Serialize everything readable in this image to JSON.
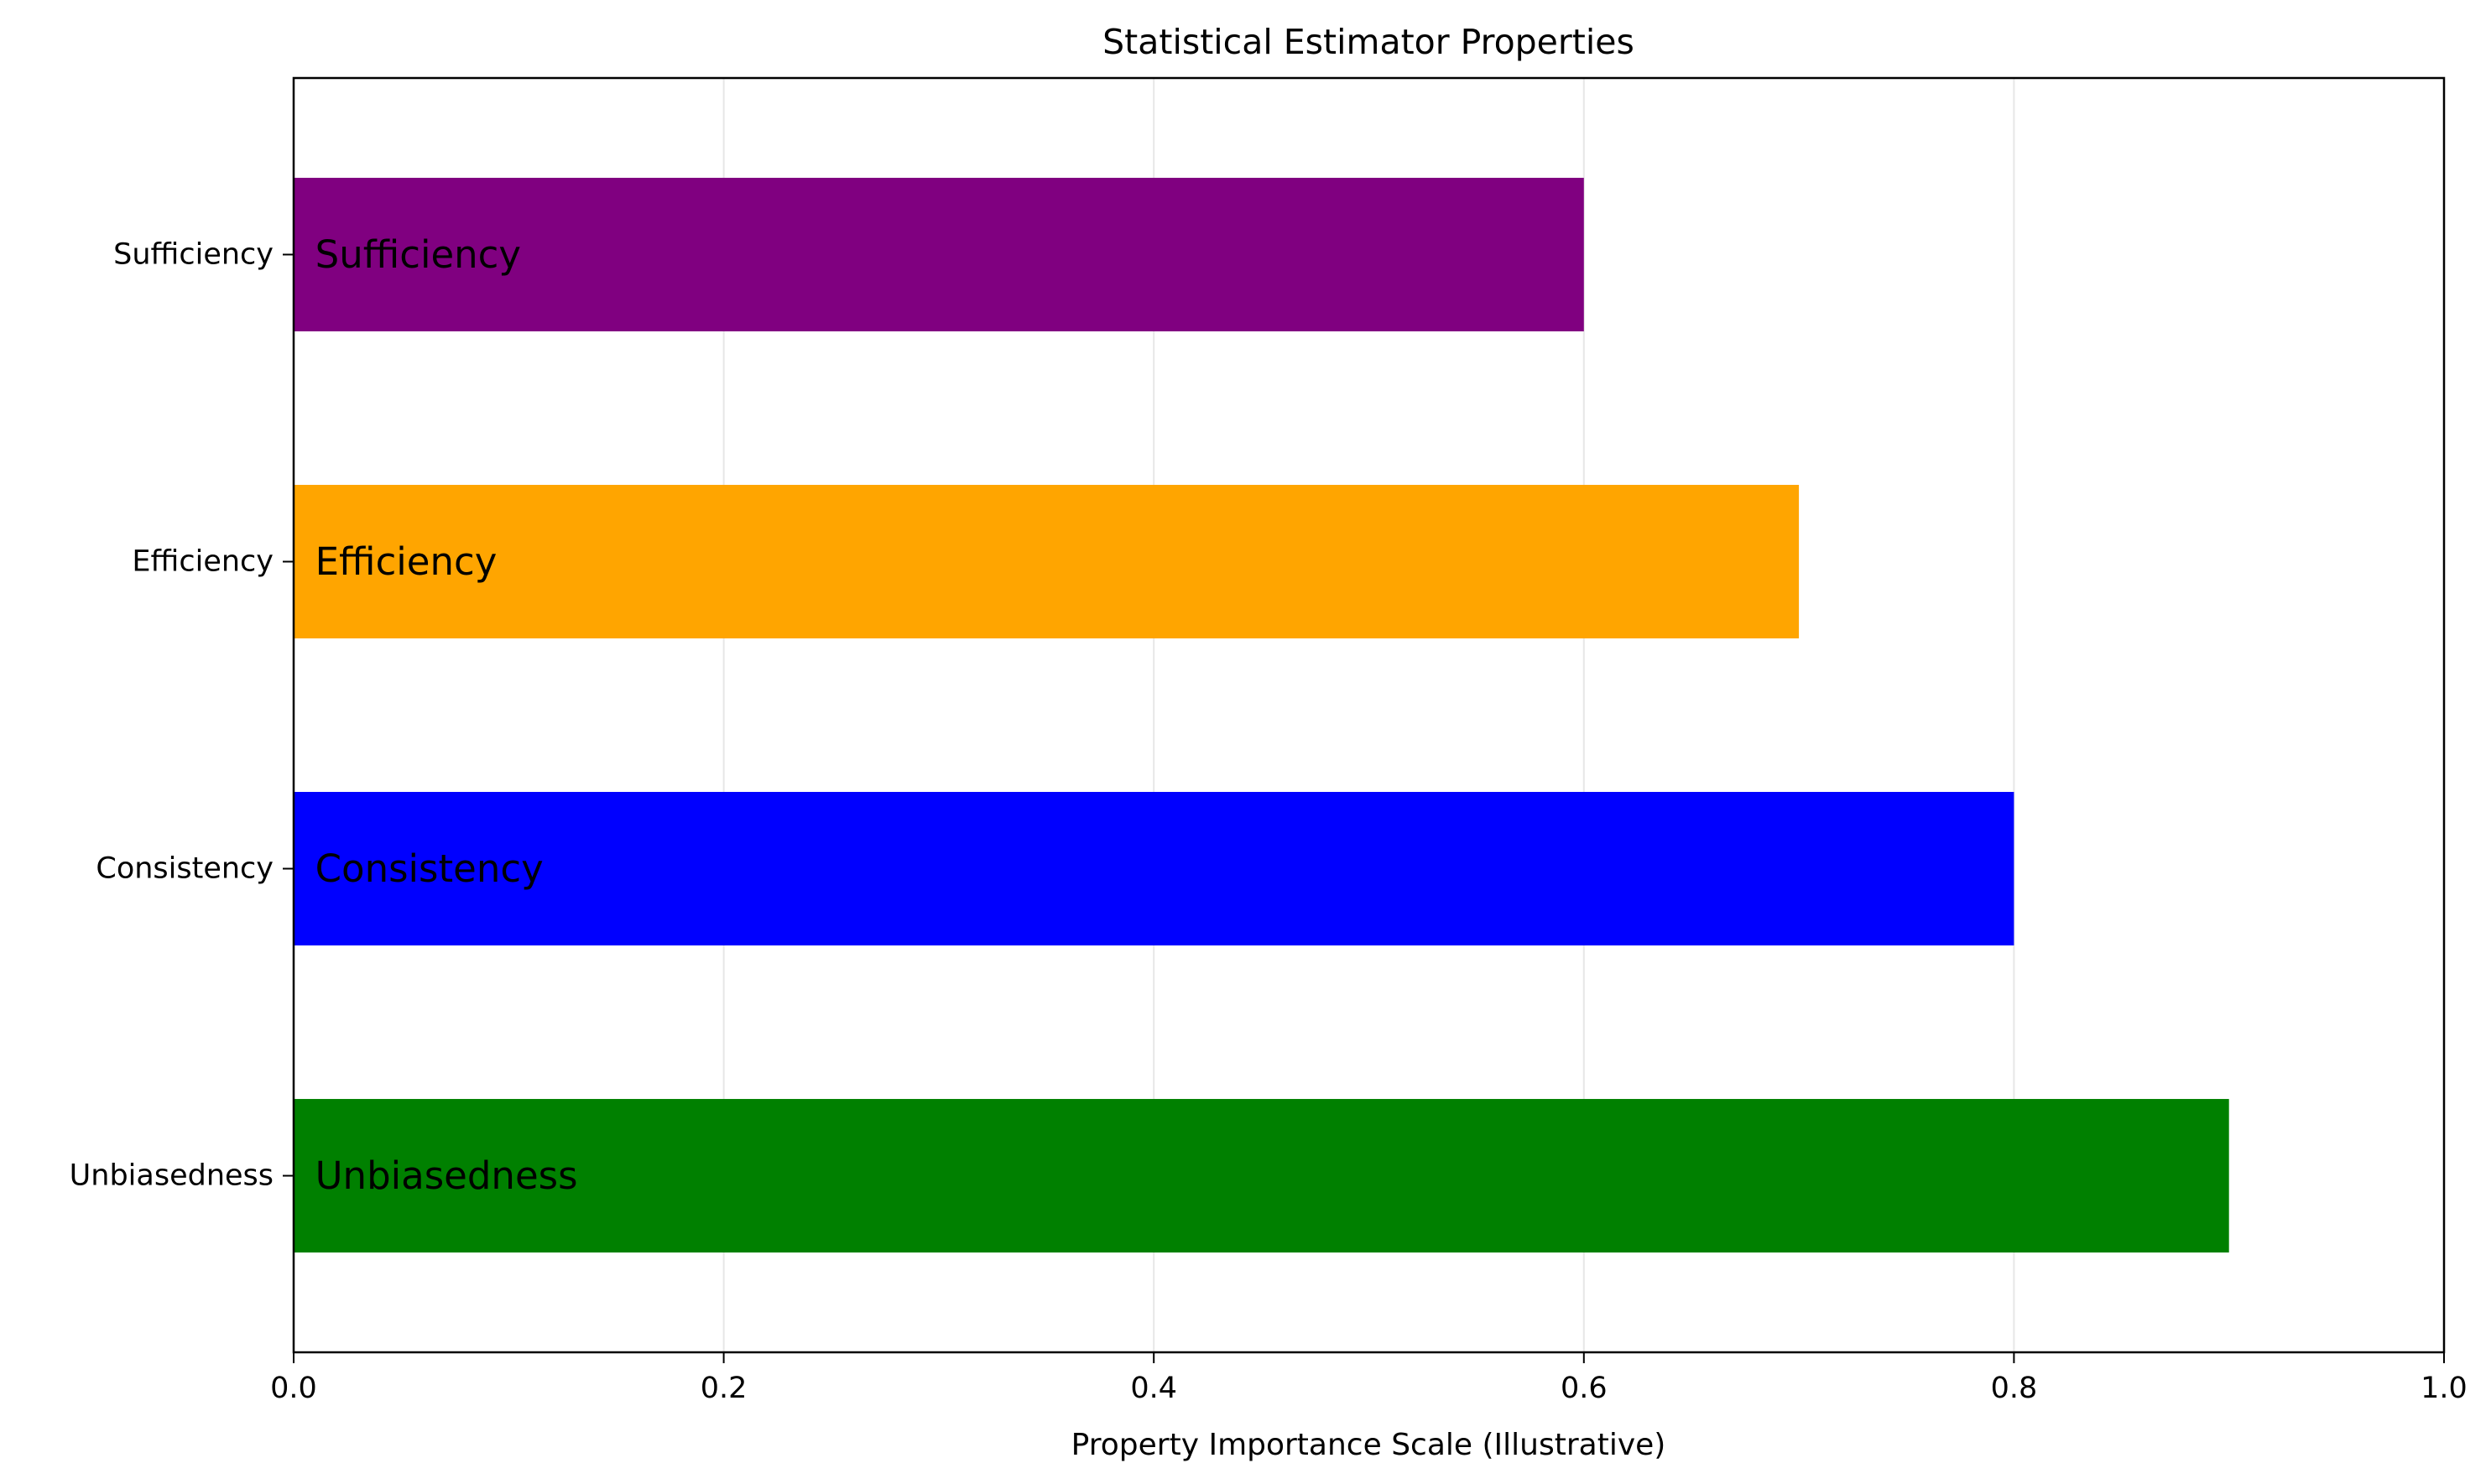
{
  "chart_data": {
    "type": "bar",
    "orientation": "horizontal",
    "title": "Statistical Estimator Properties",
    "xlabel": "Property Importance Scale (Illustrative)",
    "ylabel": "",
    "xlim": [
      0,
      1
    ],
    "xticks": [
      0.0,
      0.2,
      0.4,
      0.6,
      0.8,
      1.0
    ],
    "xtick_labels": [
      "0.0",
      "0.2",
      "0.4",
      "0.6",
      "0.8",
      "1.0"
    ],
    "grid": "x",
    "categories": [
      "Unbiasedness",
      "Consistency",
      "Efficiency",
      "Sufficiency"
    ],
    "values": [
      0.9,
      0.8,
      0.7,
      0.6
    ],
    "colors": [
      "#008000",
      "#0000ff",
      "#ffa500",
      "#800080"
    ],
    "bar_labels": [
      "Unbiasedness",
      "Consistency",
      "Efficiency",
      "Sufficiency"
    ]
  }
}
